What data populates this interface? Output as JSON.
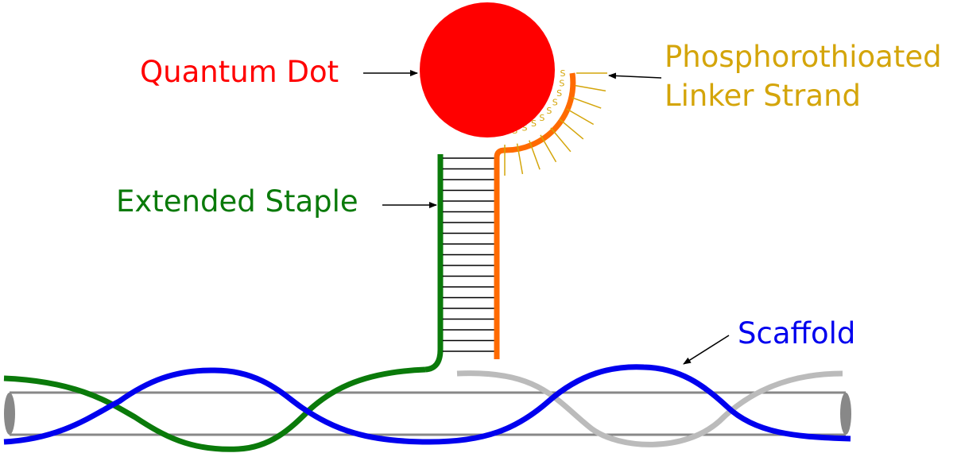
{
  "labels": {
    "quantum_dot": "Quantum Dot",
    "linker_line1": "Phosphorothioated",
    "linker_line2": "Linker Strand",
    "extended_staple": "Extended Staple",
    "scaffold": "Scaffold"
  },
  "sulfur_marker": "S",
  "colors": {
    "quantum_dot": "#ff0000",
    "linker": "#ff6a00",
    "linker_label": "#d4a50a",
    "staple": "#0a7a0a",
    "scaffold": "#0000ee",
    "scaffold_grey": "#bbbbbb",
    "tube": "#888888",
    "arrow": "#000000"
  }
}
